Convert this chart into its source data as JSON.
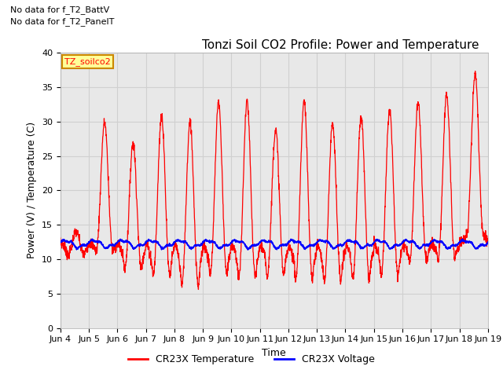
{
  "title": "Tonzi Soil CO2 Profile: Power and Temperature",
  "xlabel": "Time",
  "ylabel": "Power (V) / Temperature (C)",
  "ylim": [
    0,
    40
  ],
  "yticks": [
    0,
    5,
    10,
    15,
    20,
    25,
    30,
    35,
    40
  ],
  "xtick_labels": [
    "Jun 4",
    "Jun 5",
    "Jun 6",
    "Jun 7",
    "Jun 8",
    "Jun 9",
    "Jun 10",
    "Jun 11",
    "Jun 12",
    "Jun 13",
    "Jun 14",
    "Jun 15",
    "Jun 16",
    "Jun 17",
    "Jun 18",
    "Jun 19"
  ],
  "legend_entries": [
    "CR23X Temperature",
    "CR23X Voltage"
  ],
  "legend_colors": [
    "#ff0000",
    "#0000ff"
  ],
  "annotation_lines": [
    "No data for f_T2_BattV",
    "No data for f_T2_PanelT"
  ],
  "annotation_box_label": "TZ_soilco2",
  "temp_color": "#ff0000",
  "volt_color": "#0000ff",
  "background_color": "#ffffff",
  "plot_bg_color": "#e8e8e8",
  "grid_color": "#d0d0d0",
  "title_fontsize": 11,
  "axis_fontsize": 9,
  "tick_fontsize": 8
}
